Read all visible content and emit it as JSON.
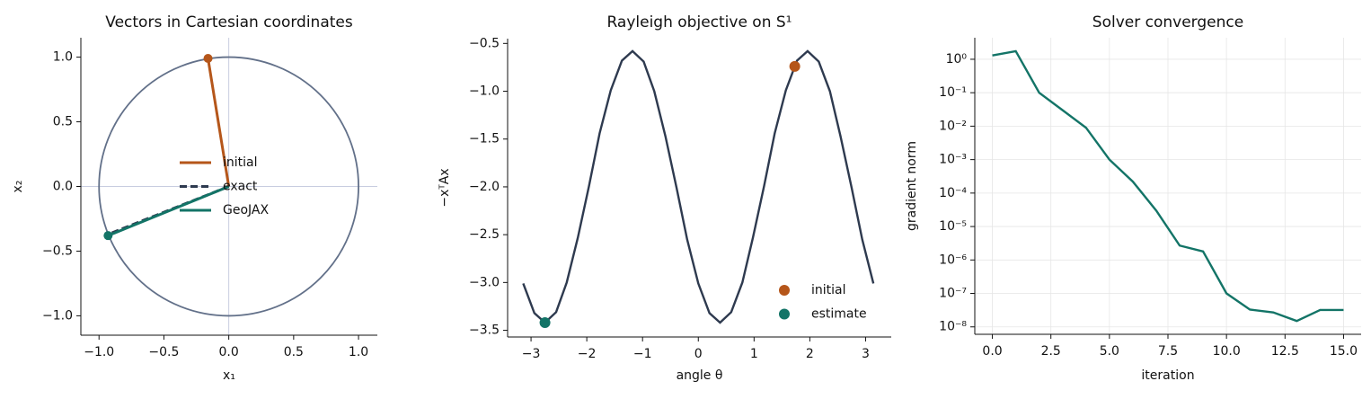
{
  "chart_data": [
    {
      "type": "vectors",
      "title": "Vectors in Cartesian coordinates",
      "xlabel": "x₁",
      "ylabel": "x₂",
      "xlim": [
        -1.14,
        1.145
      ],
      "ylim": [
        -1.15,
        1.15
      ],
      "xticks": [
        {
          "value": -1,
          "label": "−1.0"
        },
        {
          "value": -0.5,
          "label": "−0.5"
        },
        {
          "value": 0,
          "label": "0.0"
        },
        {
          "value": 0.5,
          "label": "0.5"
        },
        {
          "value": 1,
          "label": "1.0"
        }
      ],
      "yticks": [
        {
          "value": -1,
          "label": "−1.0"
        },
        {
          "value": -0.5,
          "label": "−0.5"
        },
        {
          "value": 0,
          "label": "0.0"
        },
        {
          "value": 0.5,
          "label": "0.5"
        },
        {
          "value": 1,
          "label": "1.0"
        }
      ],
      "circle": {
        "radius": 1,
        "color": "#627089"
      },
      "hlines": [
        0
      ],
      "vlines": [
        0
      ],
      "series": [
        {
          "name": "initial",
          "color": "#b5561a",
          "x": [
            0,
            -0.16
          ],
          "y": [
            0,
            0.99
          ],
          "marker": true
        },
        {
          "name": "exact",
          "color": "#2e3a4f",
          "dashed": true,
          "x": [
            0,
            -0.93
          ],
          "y": [
            0,
            -0.37
          ]
        },
        {
          "name": "GeoJAX",
          "color": "#137467",
          "x": [
            0,
            -0.93
          ],
          "y": [
            0,
            -0.38
          ],
          "marker": true
        }
      ],
      "legend": "center"
    },
    {
      "type": "line",
      "title": "Rayleigh objective on S¹",
      "xlabel": "angle θ",
      "ylabel": "−xᵀAx",
      "xlim": [
        -3.42,
        3.46
      ],
      "ylim": [
        -3.57,
        -0.45
      ],
      "xticks": [
        {
          "value": -3,
          "label": "−3"
        },
        {
          "value": -2,
          "label": "−2"
        },
        {
          "value": -1,
          "label": "−1"
        },
        0,
        1,
        2,
        3
      ],
      "yticks": [
        {
          "value": -3.5,
          "label": "−3.5"
        },
        {
          "value": -3,
          "label": "−3.0"
        },
        {
          "value": -2.5,
          "label": "−2.5"
        },
        {
          "value": -2,
          "label": "−2.0"
        },
        {
          "value": -1.5,
          "label": "−1.5"
        },
        {
          "value": -1,
          "label": "−1.0"
        },
        {
          "value": -0.5,
          "label": "−0.5"
        }
      ],
      "x": [
        -3.14,
        -2.94,
        -2.75,
        -2.55,
        -2.36,
        -2.16,
        -1.96,
        -1.77,
        -1.57,
        -1.37,
        -1.18,
        -0.98,
        -0.79,
        -0.59,
        -0.39,
        -0.2,
        0.0,
        0.2,
        0.39,
        0.59,
        0.79,
        0.98,
        1.18,
        1.37,
        1.57,
        1.77,
        1.96,
        2.16,
        2.36,
        2.55,
        2.75,
        2.94,
        3.14
      ],
      "series": [
        {
          "color": "#2e3a4f",
          "values": [
            -3.01,
            -3.32,
            -3.42,
            -3.31,
            -3.0,
            -2.53,
            -1.99,
            -1.44,
            -0.99,
            -0.68,
            -0.58,
            -0.69,
            -1.0,
            -1.47,
            -2.01,
            -2.55,
            -3.01,
            -3.32,
            -3.42,
            -3.31,
            -3.0,
            -2.53,
            -1.99,
            -1.44,
            -0.99,
            -0.68,
            -0.58,
            -0.69,
            -1.0,
            -1.47,
            -2.01,
            -2.55,
            -3.01
          ]
        }
      ],
      "points": [
        {
          "name": "initial",
          "color": "#b5561a",
          "x": 1.73,
          "y": -0.74
        },
        {
          "name": "estimate",
          "color": "#137467",
          "x": -2.75,
          "y": -3.42
        }
      ],
      "legend": "lower right"
    },
    {
      "type": "line",
      "title": "Solver convergence",
      "xlabel": "iteration",
      "ylabel": "gradient norm",
      "log_y": true,
      "grid": true,
      "xlim": [
        -0.75,
        15.75
      ],
      "ylim": [
        6e-09,
        4.4
      ],
      "xticks": [
        {
          "value": 0,
          "label": "0.0"
        },
        {
          "value": 2.5,
          "label": "2.5"
        },
        {
          "value": 5,
          "label": "5.0"
        },
        {
          "value": 7.5,
          "label": "7.5"
        },
        {
          "value": 10,
          "label": "10.0"
        },
        {
          "value": 12.5,
          "label": "12.5"
        },
        {
          "value": 15,
          "label": "15.0"
        }
      ],
      "yticks": [
        {
          "value": 1e-08,
          "label": "10⁻⁸"
        },
        {
          "value": 1e-07,
          "label": "10⁻⁷"
        },
        {
          "value": 1e-06,
          "label": "10⁻⁶"
        },
        {
          "value": 1e-05,
          "label": "10⁻⁵"
        },
        {
          "value": 0.0001,
          "label": "10⁻⁴"
        },
        {
          "value": 0.001,
          "label": "10⁻³"
        },
        {
          "value": 0.01,
          "label": "10⁻²"
        },
        {
          "value": 0.1,
          "label": "10⁻¹"
        },
        {
          "value": 1,
          "label": "10⁰"
        }
      ],
      "x": [
        0,
        1,
        2,
        3,
        4,
        5,
        6,
        7,
        8,
        9,
        10,
        11,
        12,
        13,
        14,
        15
      ],
      "series": [
        {
          "color": "#137467",
          "values": [
            1.3,
            1.75,
            0.1,
            0.03,
            0.009,
            0.001,
            0.00022,
            3e-05,
            2.7e-06,
            1.8e-06,
            1e-07,
            3.3e-08,
            2.7e-08,
            1.5e-08,
            3.2e-08,
            3.2e-08
          ]
        }
      ]
    }
  ]
}
